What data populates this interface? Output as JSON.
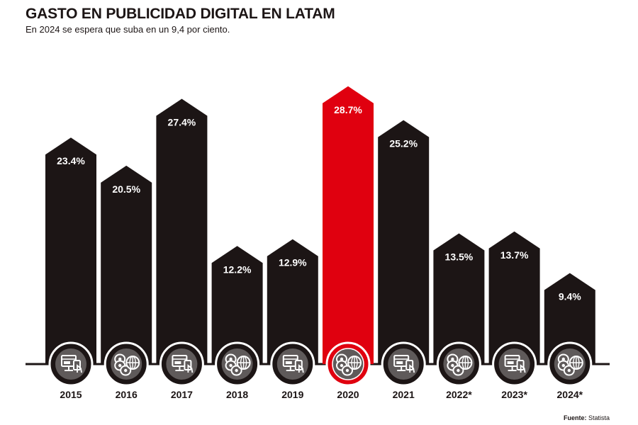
{
  "chart_data": {
    "type": "bar",
    "title": "GASTO EN PUBLICIDAD DIGITAL EN LATAM",
    "subtitle": "En 2024 se espera que suba en un 9,4 por ciento.",
    "categories": [
      "2015",
      "2016",
      "2017",
      "2018",
      "2019",
      "2020",
      "2021",
      "2022*",
      "2023*",
      "2024*"
    ],
    "values": [
      23.4,
      20.5,
      27.4,
      12.2,
      12.9,
      28.7,
      25.2,
      13.5,
      13.7,
      9.4
    ],
    "value_labels": [
      "23.4%",
      "20.5%",
      "27.4%",
      "12.2%",
      "12.9%",
      "28.7%",
      "25.2%",
      "13.5%",
      "13.7%",
      "9.4%"
    ],
    "icons": [
      "monitor-card-icon",
      "coins-globe-icon",
      "monitor-card-icon",
      "coins-globe-icon",
      "monitor-card-icon",
      "coins-globe-icon",
      "monitor-card-icon",
      "coins-globe-icon",
      "monitor-card-icon",
      "coins-globe-icon"
    ],
    "highlight_index": 5,
    "colors": {
      "bar": "#1c1515",
      "highlight": "#e0000f",
      "icon_fill": "#5f5a5a",
      "baseline": "#1c1515"
    },
    "xlabel": "",
    "ylabel": "",
    "ylim": [
      0,
      30
    ],
    "grid": false,
    "legend": "none"
  },
  "source": {
    "label": "Fuente:",
    "name": "Statista"
  }
}
